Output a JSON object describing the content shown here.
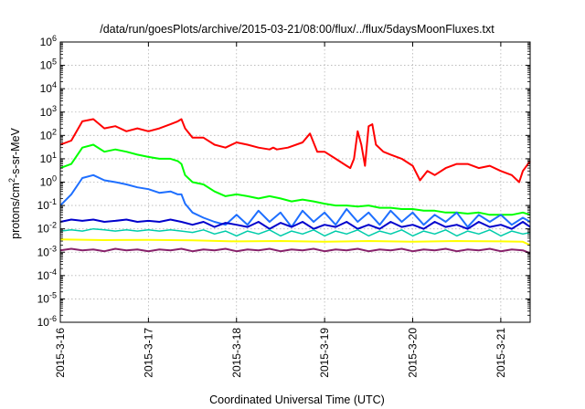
{
  "chart_data": {
    "type": "line",
    "title": "/data/run/goesPlots/archive/2015-03-21/08:00/flux/../flux/5daysMoonFluxes.txt",
    "xlabel": "Coordinated Universal Time (UTC)",
    "ylabel_parts": [
      "protons/cm",
      "2",
      "-s-sr-MeV"
    ],
    "x_scale": "time",
    "x_range": [
      "2015-03-16 00:00",
      "2015-03-21 08:00"
    ],
    "x_ticks": [
      "2015-3-16",
      "2015-3-17",
      "2015-3-18",
      "2015-3-19",
      "2015-3-20",
      "2015-3-21"
    ],
    "y_scale": "log",
    "ylim": [
      1e-06,
      1000000.0
    ],
    "y_tick_exponents": [
      -6,
      -5,
      -4,
      -3,
      -2,
      -1,
      0,
      1,
      2,
      3,
      4,
      5,
      6
    ],
    "grid": true,
    "legend": "none",
    "series": [
      {
        "color": "#ff0000",
        "width": 2,
        "x": [
          "2015-03-16 00:00",
          "2015-03-16 03:00",
          "2015-03-16 06:00",
          "2015-03-16 09:00",
          "2015-03-16 12:00",
          "2015-03-16 15:00",
          "2015-03-16 18:00",
          "2015-03-16 21:00",
          "2015-03-17 00:00",
          "2015-03-17 03:00",
          "2015-03-17 06:00",
          "2015-03-17 08:00",
          "2015-03-17 09:00",
          "2015-03-17 10:00",
          "2015-03-17 12:00",
          "2015-03-17 15:00",
          "2015-03-17 18:00",
          "2015-03-17 21:00",
          "2015-03-18 00:00",
          "2015-03-18 03:00",
          "2015-03-18 06:00",
          "2015-03-18 09:00",
          "2015-03-18 10:00",
          "2015-03-18 11:00",
          "2015-03-18 14:00",
          "2015-03-18 18:00",
          "2015-03-18 20:00",
          "2015-03-18 22:00",
          "2015-03-19 00:00",
          "2015-03-19 03:00",
          "2015-03-19 06:00",
          "2015-03-19 07:00",
          "2015-03-19 08:00",
          "2015-03-19 09:00",
          "2015-03-19 10:00",
          "2015-03-19 11:00",
          "2015-03-19 12:00",
          "2015-03-19 13:00",
          "2015-03-19 14:00",
          "2015-03-19 16:00",
          "2015-03-19 18:00",
          "2015-03-19 21:00",
          "2015-03-20 00:00",
          "2015-03-20 02:00",
          "2015-03-20 04:00",
          "2015-03-20 06:00",
          "2015-03-20 09:00",
          "2015-03-20 12:00",
          "2015-03-20 15:00",
          "2015-03-20 18:00",
          "2015-03-20 21:00",
          "2015-03-21 00:00",
          "2015-03-21 03:00",
          "2015-03-21 05:00",
          "2015-03-21 06:00",
          "2015-03-21 08:00"
        ],
        "y": [
          40,
          60,
          400,
          500,
          200,
          250,
          150,
          200,
          150,
          200,
          300,
          400,
          500,
          200,
          80,
          80,
          40,
          30,
          50,
          40,
          30,
          25,
          30,
          25,
          30,
          50,
          120,
          20,
          20,
          10,
          5,
          4,
          10,
          150,
          40,
          5,
          250,
          300,
          40,
          20,
          15,
          10,
          5,
          1.2,
          3,
          2,
          4,
          6,
          6,
          4,
          5,
          3,
          2,
          1,
          3,
          8
        ]
      },
      {
        "color": "#00ff00",
        "width": 2,
        "x": [
          "2015-03-16 00:00",
          "2015-03-16 03:00",
          "2015-03-16 06:00",
          "2015-03-16 09:00",
          "2015-03-16 12:00",
          "2015-03-16 15:00",
          "2015-03-16 18:00",
          "2015-03-16 21:00",
          "2015-03-17 00:00",
          "2015-03-17 03:00",
          "2015-03-17 06:00",
          "2015-03-17 08:00",
          "2015-03-17 09:00",
          "2015-03-17 10:00",
          "2015-03-17 12:00",
          "2015-03-17 15:00",
          "2015-03-17 18:00",
          "2015-03-17 21:00",
          "2015-03-18 00:00",
          "2015-03-18 03:00",
          "2015-03-18 06:00",
          "2015-03-18 09:00",
          "2015-03-18 12:00",
          "2015-03-18 15:00",
          "2015-03-18 18:00",
          "2015-03-18 21:00",
          "2015-03-19 00:00",
          "2015-03-19 03:00",
          "2015-03-19 06:00",
          "2015-03-19 09:00",
          "2015-03-19 12:00",
          "2015-03-19 15:00",
          "2015-03-19 18:00",
          "2015-03-19 21:00",
          "2015-03-20 00:00",
          "2015-03-20 03:00",
          "2015-03-20 06:00",
          "2015-03-20 09:00",
          "2015-03-20 12:00",
          "2015-03-20 15:00",
          "2015-03-20 18:00",
          "2015-03-20 21:00",
          "2015-03-21 00:00",
          "2015-03-21 03:00",
          "2015-03-21 06:00",
          "2015-03-21 08:00"
        ],
        "y": [
          4,
          6,
          30,
          40,
          20,
          25,
          20,
          15,
          12,
          10,
          10,
          8,
          6,
          2,
          1,
          0.8,
          0.4,
          0.25,
          0.3,
          0.25,
          0.2,
          0.25,
          0.2,
          0.15,
          0.18,
          0.15,
          0.12,
          0.1,
          0.1,
          0.09,
          0.1,
          0.08,
          0.08,
          0.07,
          0.07,
          0.06,
          0.06,
          0.05,
          0.05,
          0.045,
          0.05,
          0.04,
          0.04,
          0.04,
          0.05,
          0.04
        ]
      },
      {
        "color": "#1e6fff",
        "width": 2,
        "x": [
          "2015-03-16 00:00",
          "2015-03-16 03:00",
          "2015-03-16 06:00",
          "2015-03-16 09:00",
          "2015-03-16 12:00",
          "2015-03-16 15:00",
          "2015-03-16 18:00",
          "2015-03-16 21:00",
          "2015-03-17 00:00",
          "2015-03-17 03:00",
          "2015-03-17 06:00",
          "2015-03-17 08:00",
          "2015-03-17 09:00",
          "2015-03-17 10:00",
          "2015-03-17 12:00",
          "2015-03-17 15:00",
          "2015-03-17 18:00",
          "2015-03-17 21:00",
          "2015-03-18 00:00",
          "2015-03-18 03:00",
          "2015-03-18 06:00",
          "2015-03-18 09:00",
          "2015-03-18 12:00",
          "2015-03-18 15:00",
          "2015-03-18 18:00",
          "2015-03-18 21:00",
          "2015-03-19 00:00",
          "2015-03-19 03:00",
          "2015-03-19 06:00",
          "2015-03-19 09:00",
          "2015-03-19 12:00",
          "2015-03-19 15:00",
          "2015-03-19 18:00",
          "2015-03-19 21:00",
          "2015-03-20 00:00",
          "2015-03-20 03:00",
          "2015-03-20 06:00",
          "2015-03-20 09:00",
          "2015-03-20 12:00",
          "2015-03-20 15:00",
          "2015-03-20 18:00",
          "2015-03-20 21:00",
          "2015-03-21 00:00",
          "2015-03-21 03:00",
          "2015-03-21 06:00",
          "2015-03-21 08:00"
        ],
        "y": [
          0.1,
          0.3,
          1.5,
          2,
          1.2,
          1,
          0.8,
          0.6,
          0.5,
          0.35,
          0.4,
          0.3,
          0.3,
          0.12,
          0.05,
          0.03,
          0.02,
          0.015,
          0.04,
          0.015,
          0.06,
          0.02,
          0.05,
          0.012,
          0.06,
          0.02,
          0.05,
          0.015,
          0.07,
          0.02,
          0.05,
          0.015,
          0.06,
          0.02,
          0.05,
          0.015,
          0.04,
          0.02,
          0.05,
          0.012,
          0.04,
          0.02,
          0.04,
          0.015,
          0.03,
          0.02
        ]
      },
      {
        "color": "#0000cc",
        "width": 2,
        "x": [
          "2015-03-16 00:00",
          "2015-03-16 03:00",
          "2015-03-16 06:00",
          "2015-03-16 09:00",
          "2015-03-16 12:00",
          "2015-03-16 15:00",
          "2015-03-16 18:00",
          "2015-03-16 21:00",
          "2015-03-17 00:00",
          "2015-03-17 03:00",
          "2015-03-17 06:00",
          "2015-03-17 09:00",
          "2015-03-17 12:00",
          "2015-03-17 15:00",
          "2015-03-17 18:00",
          "2015-03-17 21:00",
          "2015-03-18 00:00",
          "2015-03-18 03:00",
          "2015-03-18 06:00",
          "2015-03-18 09:00",
          "2015-03-18 12:00",
          "2015-03-18 15:00",
          "2015-03-18 18:00",
          "2015-03-18 21:00",
          "2015-03-19 00:00",
          "2015-03-19 03:00",
          "2015-03-19 06:00",
          "2015-03-19 09:00",
          "2015-03-19 12:00",
          "2015-03-19 15:00",
          "2015-03-19 18:00",
          "2015-03-19 21:00",
          "2015-03-20 00:00",
          "2015-03-20 03:00",
          "2015-03-20 06:00",
          "2015-03-20 09:00",
          "2015-03-20 12:00",
          "2015-03-20 15:00",
          "2015-03-20 18:00",
          "2015-03-20 21:00",
          "2015-03-21 00:00",
          "2015-03-21 03:00",
          "2015-03-21 06:00",
          "2015-03-21 08:00"
        ],
        "y": [
          0.02,
          0.025,
          0.022,
          0.025,
          0.02,
          0.022,
          0.025,
          0.02,
          0.022,
          0.02,
          0.025,
          0.02,
          0.015,
          0.02,
          0.012,
          0.018,
          0.015,
          0.012,
          0.02,
          0.01,
          0.018,
          0.012,
          0.02,
          0.01,
          0.015,
          0.012,
          0.02,
          0.01,
          0.015,
          0.01,
          0.02,
          0.012,
          0.015,
          0.01,
          0.02,
          0.012,
          0.015,
          0.01,
          0.02,
          0.012,
          0.015,
          0.01,
          0.02,
          0.012
        ]
      },
      {
        "color": "#00ccaa",
        "width": 1.5,
        "x": [
          "2015-03-16 00:00",
          "2015-03-16 03:00",
          "2015-03-16 06:00",
          "2015-03-16 09:00",
          "2015-03-16 12:00",
          "2015-03-16 15:00",
          "2015-03-16 18:00",
          "2015-03-16 21:00",
          "2015-03-17 00:00",
          "2015-03-17 03:00",
          "2015-03-17 06:00",
          "2015-03-17 09:00",
          "2015-03-17 12:00",
          "2015-03-17 15:00",
          "2015-03-17 18:00",
          "2015-03-17 21:00",
          "2015-03-18 00:00",
          "2015-03-18 03:00",
          "2015-03-18 06:00",
          "2015-03-18 09:00",
          "2015-03-18 12:00",
          "2015-03-18 15:00",
          "2015-03-18 18:00",
          "2015-03-18 21:00",
          "2015-03-19 00:00",
          "2015-03-19 03:00",
          "2015-03-19 06:00",
          "2015-03-19 09:00",
          "2015-03-19 12:00",
          "2015-03-19 15:00",
          "2015-03-19 18:00",
          "2015-03-19 21:00",
          "2015-03-20 00:00",
          "2015-03-20 03:00",
          "2015-03-20 06:00",
          "2015-03-20 09:00",
          "2015-03-20 12:00",
          "2015-03-20 15:00",
          "2015-03-20 18:00",
          "2015-03-20 21:00",
          "2015-03-21 00:00",
          "2015-03-21 03:00",
          "2015-03-21 06:00",
          "2015-03-21 08:00"
        ],
        "y": [
          0.008,
          0.009,
          0.008,
          0.01,
          0.009,
          0.008,
          0.009,
          0.008,
          0.009,
          0.008,
          0.009,
          0.008,
          0.007,
          0.009,
          0.006,
          0.008,
          0.005,
          0.008,
          0.006,
          0.009,
          0.005,
          0.008,
          0.006,
          0.009,
          0.005,
          0.008,
          0.006,
          0.009,
          0.005,
          0.008,
          0.006,
          0.009,
          0.005,
          0.008,
          0.006,
          0.009,
          0.005,
          0.008,
          0.006,
          0.009,
          0.005,
          0.008,
          0.006,
          0.007
        ]
      },
      {
        "color": "#ffff00",
        "width": 2,
        "x": [
          "2015-03-16 00:00",
          "2015-03-16 12:00",
          "2015-03-17 00:00",
          "2015-03-17 12:00",
          "2015-03-18 00:00",
          "2015-03-18 12:00",
          "2015-03-19 00:00",
          "2015-03-19 12:00",
          "2015-03-20 00:00",
          "2015-03-20 12:00",
          "2015-03-21 00:00",
          "2015-03-21 06:00",
          "2015-03-21 08:00"
        ],
        "y": [
          0.0035,
          0.0033,
          0.0034,
          0.0032,
          0.0029,
          0.003,
          0.0028,
          0.003,
          0.0028,
          0.003,
          0.0029,
          0.0028,
          0.002
        ]
      },
      {
        "color": "#88226b",
        "width": 2,
        "x": [
          "2015-03-16 00:00",
          "2015-03-16 03:00",
          "2015-03-16 06:00",
          "2015-03-16 09:00",
          "2015-03-16 12:00",
          "2015-03-16 15:00",
          "2015-03-16 18:00",
          "2015-03-16 21:00",
          "2015-03-17 00:00",
          "2015-03-17 03:00",
          "2015-03-17 06:00",
          "2015-03-17 09:00",
          "2015-03-17 12:00",
          "2015-03-17 15:00",
          "2015-03-17 18:00",
          "2015-03-17 21:00",
          "2015-03-18 00:00",
          "2015-03-18 03:00",
          "2015-03-18 06:00",
          "2015-03-18 09:00",
          "2015-03-18 12:00",
          "2015-03-18 15:00",
          "2015-03-18 18:00",
          "2015-03-18 21:00",
          "2015-03-19 00:00",
          "2015-03-19 03:00",
          "2015-03-19 06:00",
          "2015-03-19 09:00",
          "2015-03-19 12:00",
          "2015-03-19 15:00",
          "2015-03-19 18:00",
          "2015-03-19 21:00",
          "2015-03-20 00:00",
          "2015-03-20 03:00",
          "2015-03-20 06:00",
          "2015-03-20 09:00",
          "2015-03-20 12:00",
          "2015-03-20 15:00",
          "2015-03-20 18:00",
          "2015-03-20 21:00",
          "2015-03-21 00:00",
          "2015-03-21 03:00",
          "2015-03-21 06:00",
          "2015-03-21 08:00"
        ],
        "y": [
          0.0012,
          0.0014,
          0.0012,
          0.0013,
          0.0011,
          0.0014,
          0.0012,
          0.0013,
          0.0011,
          0.0013,
          0.0012,
          0.0014,
          0.0011,
          0.0013,
          0.0012,
          0.0014,
          0.0011,
          0.0013,
          0.0012,
          0.0014,
          0.0011,
          0.0013,
          0.0012,
          0.0014,
          0.0011,
          0.0013,
          0.0012,
          0.0014,
          0.0011,
          0.0013,
          0.0012,
          0.0014,
          0.0011,
          0.0013,
          0.0012,
          0.0014,
          0.0011,
          0.0013,
          0.0012,
          0.0014,
          0.0011,
          0.0013,
          0.0012,
          0.0009
        ]
      }
    ]
  }
}
